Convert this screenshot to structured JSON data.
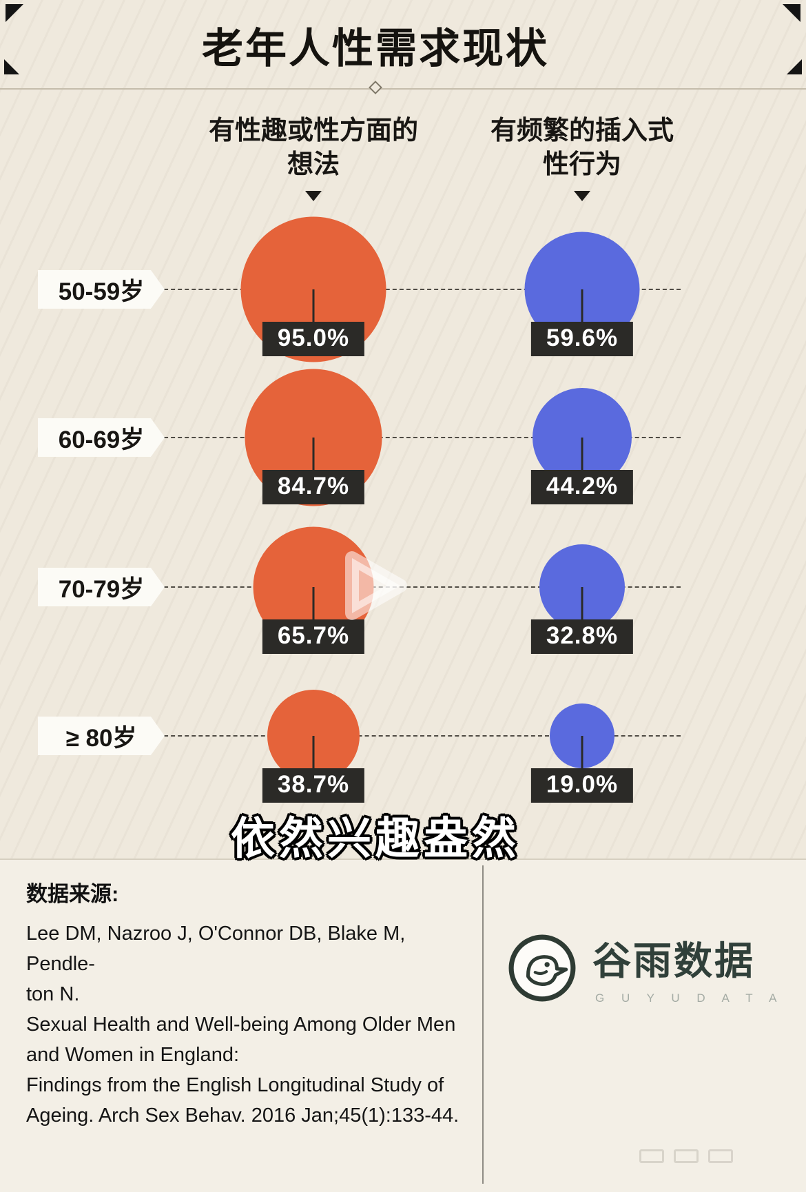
{
  "title": "老年人性需求现状",
  "subtitle_overlay": "依然兴趣盎然",
  "column_headers": [
    {
      "line1": "有性趣或性方面的",
      "line2": "想法"
    },
    {
      "line1": "有频繁的插入式",
      "line2": "性行为"
    }
  ],
  "chart_data": {
    "type": "scatter",
    "variant": "bubble",
    "title": "老年人性需求现状",
    "categories": [
      "50-59岁",
      "60-69岁",
      "70-79岁",
      "≥ 80岁"
    ],
    "series": [
      {
        "name": "有性趣或性方面的想法",
        "color": "#e5633a",
        "values": [
          95.0,
          84.7,
          65.7,
          38.7
        ],
        "labels": [
          "95.0%",
          "84.7%",
          "65.7%",
          "38.7%"
        ]
      },
      {
        "name": "有频繁的插入式性行为",
        "color": "#5a6ade",
        "values": [
          59.6,
          44.2,
          32.8,
          19.0
        ],
        "labels": [
          "59.6%",
          "44.2%",
          "32.8%",
          "19.0%"
        ]
      }
    ],
    "unit": "%",
    "bubble_scale": "radius proportional to sqrt(value)",
    "grid": "horizontal dashed guide line per age category",
    "legend_position": "column headers above each bubble column"
  },
  "footer": {
    "source_label": "数据来源:",
    "reference_lines": [
      "Lee DM, Nazroo J, O'Connor DB, Blake M, Pendle-",
      "ton N.",
      "Sexual Health and Well-being Among Older Men",
      "and Women in England:",
      "Findings from the English Longitudinal Study of",
      "Ageing. Arch Sex Behav. 2016 Jan;45(1):133-44."
    ],
    "logo": {
      "name": "谷雨数据",
      "latin": "G U Y U D A T A"
    }
  },
  "colors": {
    "background": "#efe9dd",
    "series_interest": "#e5633a",
    "series_behavior": "#5a6ade",
    "value_box": "#2b2a27"
  }
}
